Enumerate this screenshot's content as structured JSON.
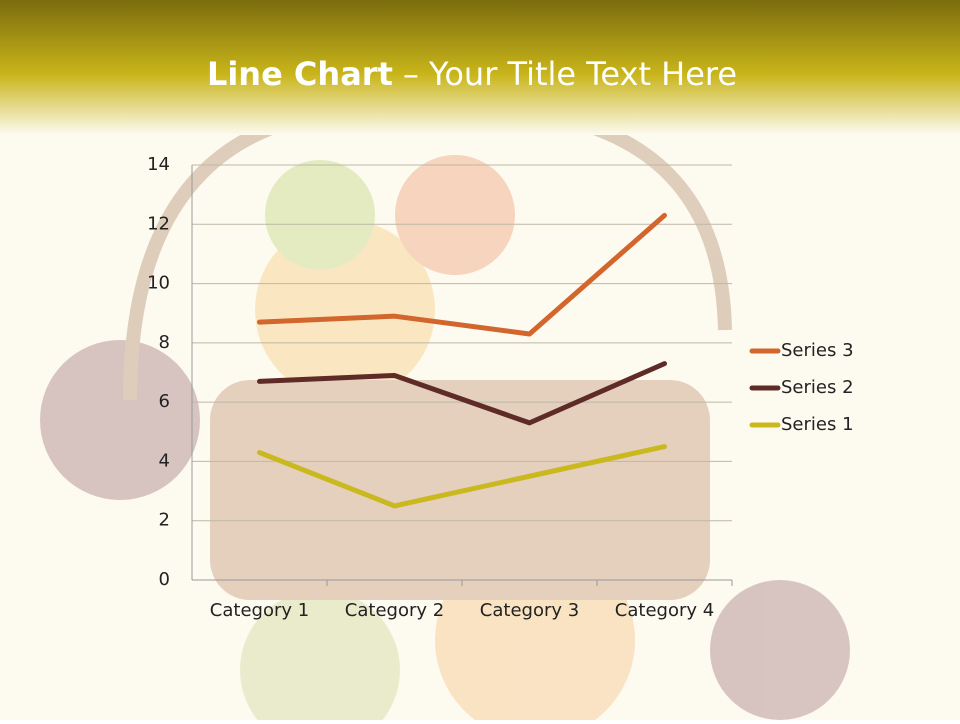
{
  "chart_data": {
    "type": "line",
    "stacked": true,
    "title": [
      "Line Chart",
      "– Your Title Text Here"
    ],
    "categories": [
      "Category 1",
      "Category 2",
      "Category 3",
      "Category 4"
    ],
    "series": [
      {
        "name": "Series 1",
        "color": "#c9b81e",
        "values": [
          4.3,
          2.5,
          3.5,
          4.5
        ]
      },
      {
        "name": "Series 2",
        "color": "#5e2b27",
        "values": [
          2.4,
          4.4,
          1.8,
          2.8
        ]
      },
      {
        "name": "Series 3",
        "color": "#d2662c",
        "values": [
          2,
          2,
          3,
          5
        ]
      }
    ],
    "ylim": [
      0,
      14
    ],
    "yticks": [
      0,
      2,
      4,
      6,
      8,
      10,
      12,
      14
    ],
    "grid": true,
    "legend": "right"
  }
}
